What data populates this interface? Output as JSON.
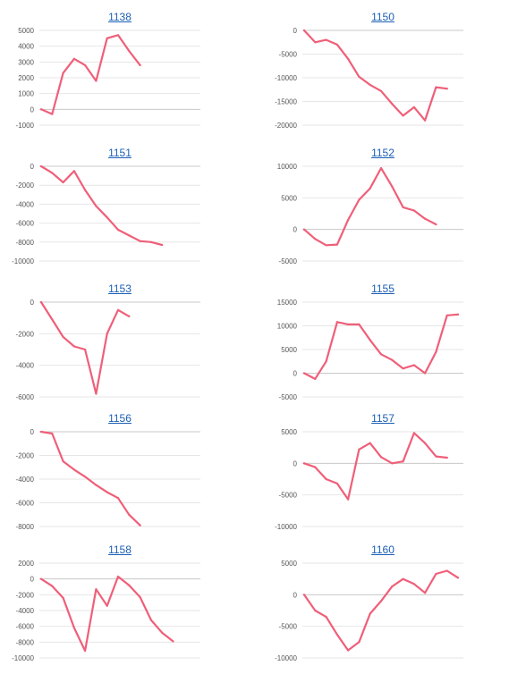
{
  "colors": {
    "line": "#ef5f79",
    "grid": "#e6e6e6",
    "axis": "#cfcfcf",
    "tick": "#555555",
    "title": "#1a5fb4"
  },
  "chart_data": [
    {
      "type": "line",
      "title": "1138",
      "ylim": [
        -1000,
        5000
      ],
      "yticks": [
        5000,
        4000,
        3000,
        2000,
        1000,
        0,
        -1000
      ],
      "ytick_labels": [
        "5000",
        "4000",
        "3000",
        "2000",
        "1000",
        "0",
        "-1000"
      ],
      "values": [
        0,
        -300,
        2300,
        3200,
        2800,
        1800,
        4500,
        4700,
        3700,
        2800
      ]
    },
    {
      "type": "line",
      "title": "1150",
      "ylim": [
        -20000,
        0
      ],
      "yticks": [
        0,
        -5000,
        -10000,
        -15000,
        -20000
      ],
      "ytick_labels": [
        "0",
        "-5000",
        "-10000",
        "-15000",
        "-20000"
      ],
      "values": [
        0,
        -2500,
        -2000,
        -3000,
        -6000,
        -9800,
        -11500,
        -12800,
        -15500,
        -18000,
        -16200,
        -19000,
        -12000,
        -12300
      ]
    },
    {
      "type": "line",
      "title": "1151",
      "ylim": [
        -10000,
        0
      ],
      "yticks": [
        0,
        -2000,
        -4000,
        -6000,
        -8000,
        -10000
      ],
      "ytick_labels": [
        "0",
        "-2000",
        "-4000",
        "-6000",
        "-8000",
        "-10000"
      ],
      "values": [
        0,
        -700,
        -1700,
        -500,
        -2500,
        -4200,
        -5400,
        -6700,
        -7300,
        -7900,
        -8000,
        -8300
      ]
    },
    {
      "type": "line",
      "title": "1152",
      "ylim": [
        -5000,
        10000
      ],
      "yticks": [
        10000,
        5000,
        0,
        -5000
      ],
      "ytick_labels": [
        "10000",
        "5000",
        "0",
        "-5000"
      ],
      "values": [
        0,
        -1500,
        -2500,
        -2400,
        1500,
        4700,
        6500,
        9700,
        6800,
        3500,
        3000,
        1700,
        800
      ]
    },
    {
      "type": "line",
      "title": "1153",
      "ylim": [
        -6000,
        0
      ],
      "yticks": [
        0,
        -2000,
        -4000,
        -6000
      ],
      "ytick_labels": [
        "0",
        "-2000",
        "-4000",
        "-6000"
      ],
      "values": [
        0,
        -1100,
        -2200,
        -2800,
        -3000,
        -5800,
        -2000,
        -500,
        -900
      ]
    },
    {
      "type": "line",
      "title": "1155",
      "ylim": [
        -5000,
        15000
      ],
      "yticks": [
        15000,
        10000,
        5000,
        0,
        -5000
      ],
      "ytick_labels": [
        "15000",
        "10000",
        "5000",
        "0",
        "-5000"
      ],
      "values": [
        0,
        -1200,
        2500,
        10800,
        10300,
        10300,
        7000,
        4000,
        2800,
        1000,
        1700,
        0,
        4500,
        12200,
        12400
      ]
    },
    {
      "type": "line",
      "title": "1156",
      "ylim": [
        -8000,
        0
      ],
      "yticks": [
        0,
        -2000,
        -4000,
        -6000,
        -8000
      ],
      "ytick_labels": [
        "0",
        "-2000",
        "-4000",
        "-6000",
        "-8000"
      ],
      "values": [
        0,
        -150,
        -2500,
        -3200,
        -3800,
        -4500,
        -5100,
        -5600,
        -7000,
        -7900
      ]
    },
    {
      "type": "line",
      "title": "1157",
      "ylim": [
        -10000,
        5000
      ],
      "yticks": [
        5000,
        0,
        -5000,
        -10000
      ],
      "ytick_labels": [
        "5000",
        "0",
        "-5000",
        "-10000"
      ],
      "values": [
        0,
        -600,
        -2500,
        -3200,
        -5700,
        2200,
        3200,
        1000,
        0,
        300,
        4800,
        3200,
        1100,
        900
      ]
    },
    {
      "type": "line",
      "title": "1158",
      "ylim": [
        -10000,
        2000
      ],
      "yticks": [
        2000,
        0,
        -2000,
        -4000,
        -6000,
        -8000,
        -10000
      ],
      "ytick_labels": [
        "2000",
        "0",
        "-2000",
        "-4000",
        "-6000",
        "-8000",
        "-10000"
      ],
      "values": [
        0,
        -900,
        -2400,
        -6200,
        -9100,
        -1300,
        -3400,
        300,
        -800,
        -2300,
        -5200,
        -6800,
        -7900
      ]
    },
    {
      "type": "line",
      "title": "1160",
      "ylim": [
        -10000,
        5000
      ],
      "yticks": [
        5000,
        0,
        -5000,
        -10000
      ],
      "ytick_labels": [
        "5000",
        "0",
        "-5000",
        "-10000"
      ],
      "values": [
        0,
        -2500,
        -3500,
        -6300,
        -8800,
        -7500,
        -3000,
        -1000,
        1300,
        2500,
        1700,
        300,
        3300,
        3800,
        2700
      ]
    }
  ]
}
